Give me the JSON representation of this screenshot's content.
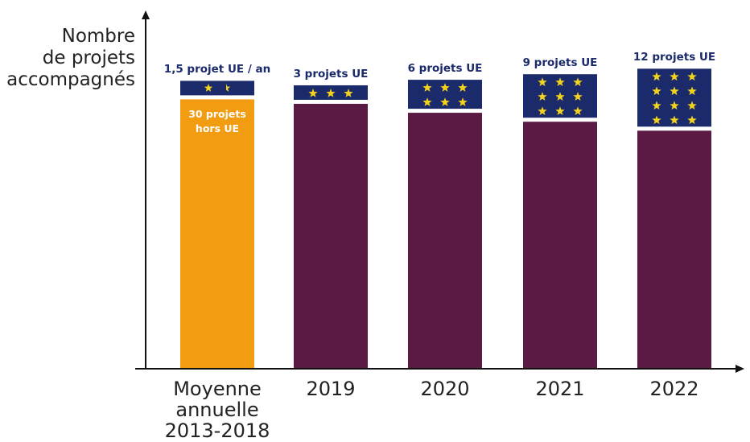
{
  "chart_data": {
    "type": "bar",
    "ylabel_lines": [
      "Nombre",
      "de projets",
      "accompagnés"
    ],
    "categories": [
      [
        "Moyenne",
        "annuelle",
        "2013-2018"
      ],
      [
        "2019"
      ],
      [
        "2020"
      ],
      [
        "2021"
      ],
      [
        "2022"
      ]
    ],
    "series": [
      {
        "values": [
          30,
          29.5,
          28.5,
          27.5,
          26.5
        ]
      },
      {
        "values": [
          1.5,
          3,
          6,
          9,
          12
        ]
      }
    ],
    "eu_labels": [
      "1,5 projet UE / an",
      "3 projets UE",
      "6 projets UE",
      "9 projets UE",
      "12 projets UE"
    ],
    "inner_labels": [
      [
        "30 projets",
        "hors UE"
      ],
      [],
      [],
      [],
      []
    ],
    "stars": [
      1.5,
      3,
      6,
      9,
      12
    ],
    "colors": {
      "first_base": "#f29c11",
      "base": "#5b1a44",
      "eu": "#1b2a6b",
      "star": "#f2d21b",
      "axis": "#111111"
    }
  }
}
